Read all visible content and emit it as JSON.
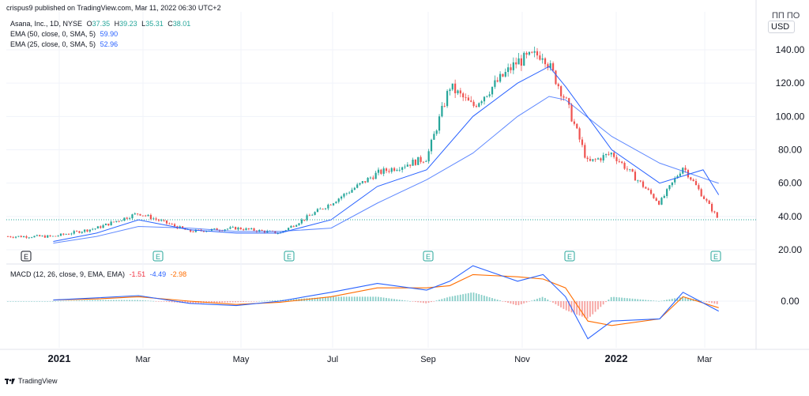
{
  "publisher": "crispus9 published on TradingView.com, Mar 11, 2022 06:30 UTC+2",
  "legend": {
    "symbol": "Asana, Inc., 1D, NYSE",
    "open_label": "O",
    "open": "37.35",
    "high_label": "H",
    "high": "39.23",
    "low_label": "L",
    "low": "35.31",
    "close_label": "C",
    "close": "38.01",
    "ema50_label": "EMA (50, close, 0, SMA, 5)",
    "ema50_value": "59.90",
    "ema25_label": "EMA (25, close, 0, SMA, 5)",
    "ema25_value": "52.96"
  },
  "macd_legend": {
    "label": "MACD (12, 26, close, 9, EMA, EMA)",
    "hist": "-1.51",
    "macd": "-4.49",
    "signal": "-2.98"
  },
  "currency": "USD",
  "currency_partial": "ПП ПО",
  "footer_logo": "TradingView",
  "colors": {
    "up": "#26a69a",
    "down": "#ef5350",
    "ema": "#2962ff",
    "signal": "#ff6d00",
    "grid": "#f0f3fa",
    "text": "#131722",
    "border": "#e0e3eb"
  },
  "chart_data": [
    {
      "type": "candlestick",
      "title": "Asana, Inc., 1D, NYSE",
      "x_tick_labels": [
        "2021",
        "Mar",
        "May",
        "Jul",
        "Sep",
        "Nov",
        "2022",
        "Mar"
      ],
      "y_tick_labels": [
        "140.00",
        "120.00",
        "100.00",
        "80.00",
        "60.00",
        "40.00",
        "20.00"
      ],
      "ylim": [
        12,
        162
      ],
      "last_price": 38.01,
      "earnings_markers": [
        "E",
        "E",
        "E",
        "E",
        "E",
        "E"
      ],
      "grid": "on",
      "series": [
        {
          "name": "EMA (50, close, 0, SMA, 5)",
          "x": [
            "2020-12-31",
            "2021-01-29",
            "2021-02-26",
            "2021-03-31",
            "2021-04-30",
            "2021-05-28",
            "2021-06-30",
            "2021-07-30",
            "2021-08-31",
            "2021-09-30",
            "2021-10-29",
            "2021-11-19",
            "2021-11-30",
            "2021-12-31",
            "2022-01-31",
            "2022-02-28",
            "2022-03-10"
          ],
          "values": [
            24,
            28,
            34,
            33,
            31,
            31,
            33,
            48,
            62,
            78,
            100,
            112,
            110,
            88,
            72,
            63,
            59.9
          ]
        },
        {
          "name": "EMA (25, close, 0, SMA, 5)",
          "x": [
            "2020-12-31",
            "2021-01-29",
            "2021-02-26",
            "2021-03-31",
            "2021-04-30",
            "2021-05-28",
            "2021-06-30",
            "2021-07-30",
            "2021-08-31",
            "2021-09-30",
            "2021-10-29",
            "2021-11-19",
            "2021-11-30",
            "2021-12-31",
            "2022-01-31",
            "2022-02-28",
            "2022-03-10"
          ],
          "values": [
            25,
            30,
            38,
            32,
            30,
            30,
            38,
            58,
            68,
            100,
            120,
            130,
            118,
            80,
            60,
            68,
            52.96
          ]
        }
      ],
      "approx_close": {
        "x": [
          "2020-12-31",
          "2021-01-29",
          "2021-02-26",
          "2021-03-31",
          "2021-04-30",
          "2021-05-28",
          "2021-06-30",
          "2021-07-30",
          "2021-08-31",
          "2021-09-15",
          "2021-09-30",
          "2021-10-29",
          "2021-11-15",
          "2021-11-30",
          "2021-12-15",
          "2021-12-31",
          "2022-01-31",
          "2022-02-15",
          "2022-03-10"
        ],
        "values": [
          28,
          33,
          42,
          31,
          33,
          30,
          48,
          66,
          75,
          118,
          106,
          133,
          138,
          110,
          72,
          78,
          48,
          70,
          38
        ]
      }
    },
    {
      "type": "line",
      "title": "MACD (12, 26, close, 9, EMA, EMA)",
      "ylabel": "",
      "y_tick_labels": [
        "0.00"
      ],
      "series": [
        {
          "name": "MACD",
          "values": [
            0.5,
            1.5,
            2.5,
            -1,
            -2,
            0,
            4,
            8,
            5,
            9,
            16,
            9,
            12,
            2,
            -17,
            -9,
            -8,
            4,
            -4.49
          ]
        },
        {
          "name": "Signal",
          "values": [
            0.5,
            1,
            2,
            0,
            -1.5,
            -0.5,
            2,
            6,
            6,
            7,
            12,
            11,
            10,
            6,
            -9,
            -11,
            -8,
            2,
            -2.98
          ]
        },
        {
          "name": "Histogram",
          "values": [
            0,
            0.5,
            0.5,
            -1,
            -0.5,
            0.5,
            2,
            2,
            -1,
            2,
            4,
            -2,
            2,
            -4,
            -8,
            2,
            0,
            2,
            -1.51
          ]
        }
      ]
    }
  ]
}
